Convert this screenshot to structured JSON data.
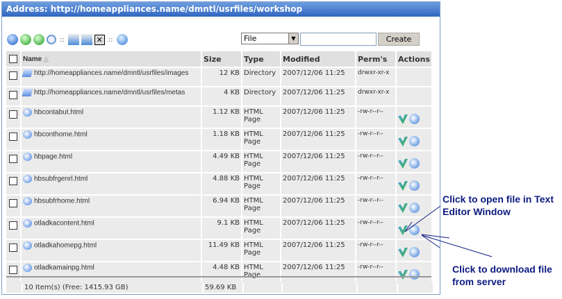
{
  "title": "Address: http://homeappliances.name/dmntl/usrfiles/workshop",
  "toolbar": {
    "icons": [
      "home-icon",
      "up-icon",
      "refresh-icon",
      "search-icon",
      "copy-icon",
      "move-icon",
      "delete-icon",
      "upload-icon"
    ]
  },
  "create": {
    "type_value": "File",
    "name_value": "",
    "button": "Create"
  },
  "columns": {
    "name": "Name",
    "size": "Size",
    "type": "Type",
    "modified": "Modified",
    "perms": "Perm's",
    "actions": "Actions"
  },
  "rows": [
    {
      "name": "http://homeappliances.name/dmntl/usrfiles/images",
      "size": "12 KB",
      "type": "Directory",
      "modified": "2007/12/06 11:25",
      "perms": "drwxr-xr-x",
      "kind": "dir"
    },
    {
      "name": "http://homeappliances.name/dmntl/usrfiles/metas",
      "size": "4 KB",
      "type": "Directory",
      "modified": "2007/12/06 11:25",
      "perms": "drwxr-xr-x",
      "kind": "dir"
    },
    {
      "name": "hbcontabut.html",
      "size": "1.12 KB",
      "type": "HTML Page",
      "modified": "2007/12/06 11:25",
      "perms": "-rw-r--r--",
      "kind": "file"
    },
    {
      "name": "hbconthome.html",
      "size": "1.18 KB",
      "type": "HTML Page",
      "modified": "2007/12/06 11:25",
      "perms": "-rw-r--r--",
      "kind": "file"
    },
    {
      "name": "hbpage.html",
      "size": "4.49 KB",
      "type": "HTML Page",
      "modified": "2007/12/06 11:25",
      "perms": "-rw-r--r--",
      "kind": "file"
    },
    {
      "name": "hbsubfrgenrl.html",
      "size": "4.88 KB",
      "type": "HTML Page",
      "modified": "2007/12/06 11:25",
      "perms": "-rw-r--r--",
      "kind": "file"
    },
    {
      "name": "hbsubfrhome.html",
      "size": "6.94 KB",
      "type": "HTML Page",
      "modified": "2007/12/06 11:25",
      "perms": "-rw-r--r--",
      "kind": "file"
    },
    {
      "name": "otladkacontent.html",
      "size": "9.1 KB",
      "type": "HTML Page",
      "modified": "2007/12/06 11:25",
      "perms": "-rw-r--r--",
      "kind": "file"
    },
    {
      "name": "otladkahomepg.html",
      "size": "11.49 KB",
      "type": "HTML Page",
      "modified": "2007/12/06 11:25",
      "perms": "-rw-r--r--",
      "kind": "file"
    },
    {
      "name": "otladkamainpg.html",
      "size": "4.48 KB",
      "type": "HTML Page",
      "modified": "2007/12/06 11:25",
      "perms": "-rw-r--r--",
      "kind": "file"
    }
  ],
  "footer": {
    "items": "10 Item(s) (Free: 1415.93 GB)",
    "total": "59.69 KB"
  },
  "annotations": {
    "edit": "Click to open file in Text Editor Window",
    "download": "Click to download file from server"
  },
  "colors": {
    "titlebar": "#2f66c0",
    "annotation": "#0c1a80"
  }
}
